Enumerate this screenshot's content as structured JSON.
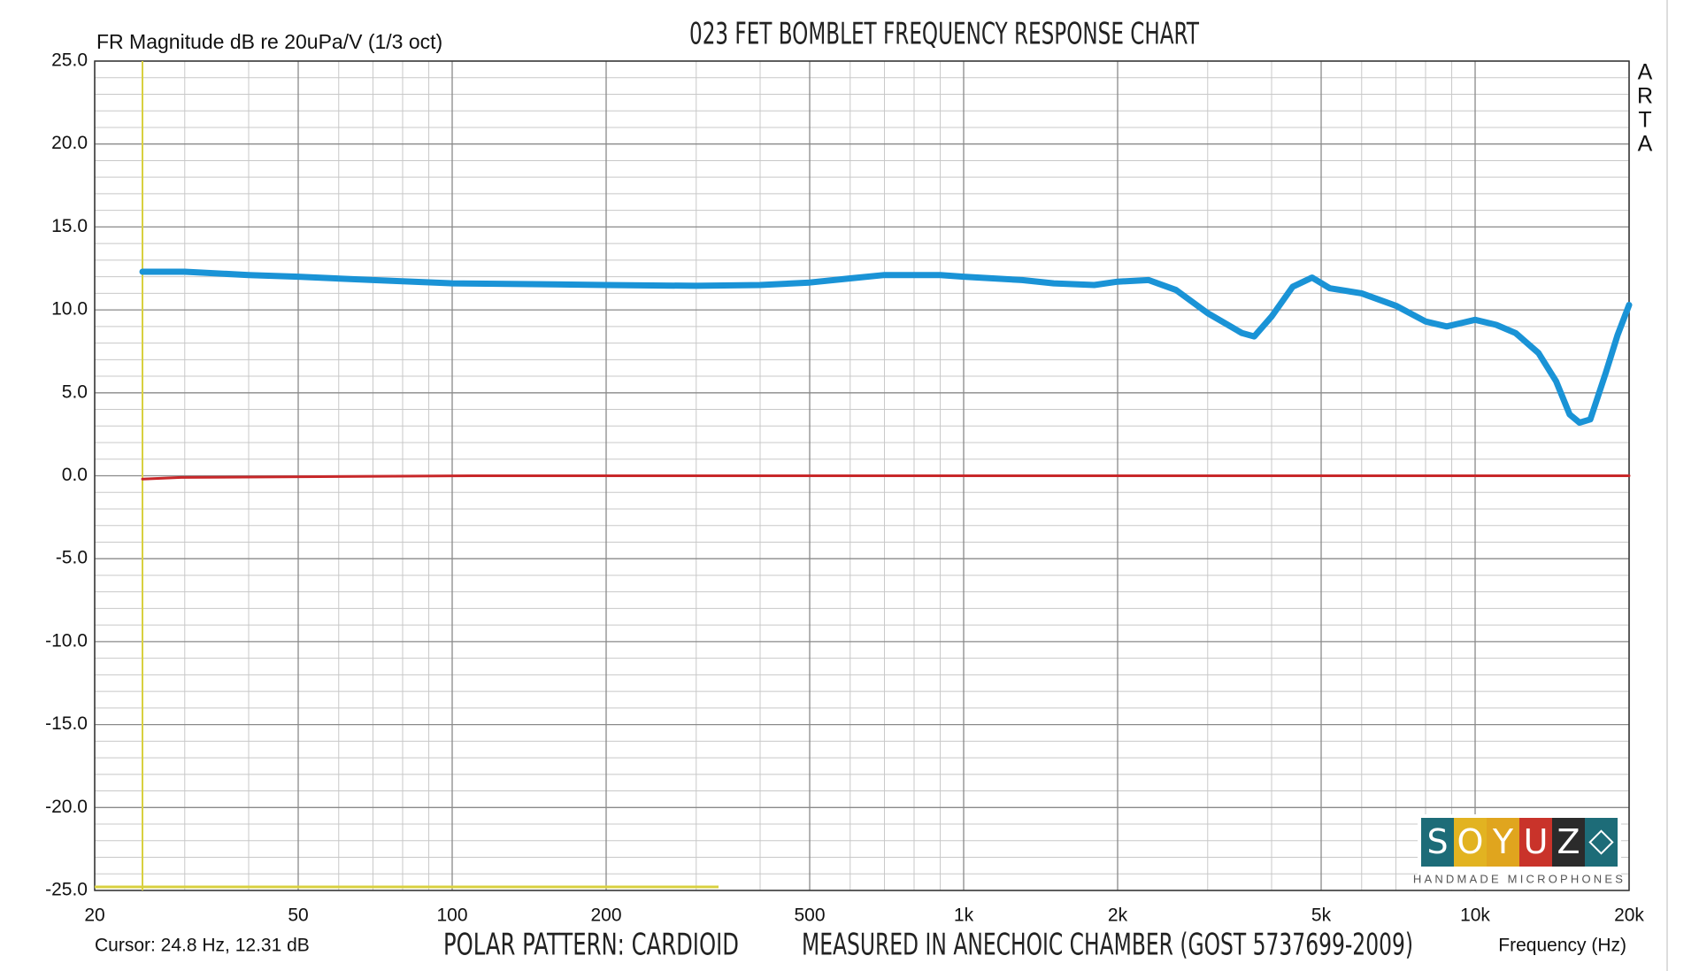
{
  "chart_data": {
    "type": "line",
    "title": "023 FET BOMBLET FREQUENCY RESPONSE CHART",
    "y_label": "FR Magnitude dB re 20uPa/V (1/3 oct)",
    "x_label": "Frequency (Hz)",
    "side_label": [
      "A",
      "R",
      "T",
      "A"
    ],
    "notes": [
      "POLAR PATTERN: CARDIOID",
      "MEASURED IN ANECHOIC CHAMBER (GOST 5737699-2009)"
    ],
    "cursor": {
      "label": "Cursor: 24.8 Hz, 12.31 dB",
      "x": 24.8,
      "color": "#d8d040"
    },
    "x_log": true,
    "xlim": [
      20,
      20000
    ],
    "xticks": [
      20,
      50,
      100,
      200,
      500,
      {
        "value": 1000,
        "label": "1k"
      },
      {
        "value": 2000,
        "label": "2k"
      },
      {
        "value": 5000,
        "label": "5k"
      },
      {
        "value": 10000,
        "label": "10k"
      },
      {
        "value": 20000,
        "label": "20k"
      }
    ],
    "x_minor_ticks": [
      30,
      40,
      60,
      70,
      80,
      90,
      300,
      400,
      600,
      700,
      800,
      900,
      3000,
      4000,
      6000,
      7000,
      8000,
      9000
    ],
    "ylim": [
      -25,
      25
    ],
    "yticks": [
      {
        "value": -25,
        "label": "-25.0"
      },
      {
        "value": -20,
        "label": "-20.0"
      },
      {
        "value": -15,
        "label": "-15.0"
      },
      {
        "value": -10,
        "label": "-10.0"
      },
      {
        "value": -5,
        "label": "-5.0"
      },
      {
        "value": 0,
        "label": "0.0"
      },
      {
        "value": 5,
        "label": "5.0"
      },
      {
        "value": 10,
        "label": "10.0"
      },
      {
        "value": 15,
        "label": "15.0"
      },
      {
        "value": 20,
        "label": "20.0"
      },
      {
        "value": 25,
        "label": "25.0"
      }
    ],
    "y_minor_ticks": [
      -24,
      -23,
      -22,
      -21,
      -19,
      -18,
      -17,
      -16,
      -14,
      -13,
      -12,
      -11,
      -9,
      -8,
      -7,
      -6,
      -4,
      -3,
      -2,
      -1,
      1,
      2,
      3,
      4,
      6,
      7,
      8,
      9,
      11,
      12,
      13,
      14,
      16,
      17,
      18,
      19,
      21,
      22,
      23,
      24
    ],
    "grid": true,
    "series": [
      {
        "color": "#1a93d6",
        "width": 7,
        "x": [
          24.8,
          30,
          40,
          50,
          70,
          100,
          150,
          200,
          300,
          400,
          500,
          600,
          700,
          900,
          1000,
          1300,
          1500,
          1800,
          2000,
          2300,
          2600,
          3000,
          3500,
          3700,
          4000,
          4400,
          4800,
          5200,
          6000,
          7000,
          8000,
          8800,
          10000,
          11000,
          12000,
          13300,
          14400,
          15300,
          16000,
          16800,
          18000,
          19000,
          20000
        ],
        "values": [
          12.3,
          12.3,
          12.1,
          12.0,
          11.8,
          11.6,
          11.55,
          11.5,
          11.45,
          11.5,
          11.65,
          11.9,
          12.1,
          12.1,
          12.0,
          11.8,
          11.6,
          11.5,
          11.7,
          11.8,
          11.2,
          9.8,
          8.6,
          8.4,
          9.6,
          11.4,
          11.95,
          11.3,
          11.0,
          10.25,
          9.3,
          9.0,
          9.4,
          9.1,
          8.6,
          7.4,
          5.7,
          3.7,
          3.2,
          3.4,
          6.2,
          8.5,
          10.3
        ]
      },
      {
        "color": "#c8282a",
        "width": 3,
        "x": [
          24.8,
          29.5,
          110,
          20000
        ],
        "values": [
          -0.2,
          -0.1,
          0,
          0
        ]
      }
    ],
    "logo": {
      "letters": [
        "S",
        "O",
        "Y",
        "U",
        "Z"
      ],
      "colors": [
        "#1d6c78",
        "#e2b321",
        "#e0a51e",
        "#c9332a",
        "#2b2b2b"
      ],
      "icon_color": "#1d6c78",
      "tagline": "HANDMADE MICROPHONES"
    }
  }
}
